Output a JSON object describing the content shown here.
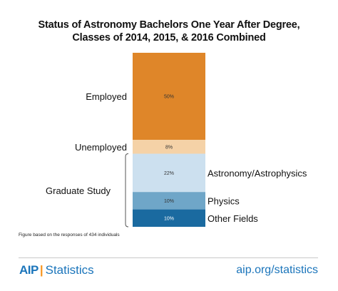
{
  "chart_data": {
    "type": "bar",
    "stacked": true,
    "title": "Status of Astronomy Bachelors One Year After Degree,",
    "subtitle": "Classes of 2014, 2015, & 2016 Combined",
    "categories": [
      "Employed",
      "Unemployed",
      "Astronomy/Astrophysics",
      "Physics",
      "Other Fields"
    ],
    "values": [
      50,
      8,
      22,
      10,
      10
    ],
    "value_labels": [
      "50%",
      "8%",
      "22%",
      "10%",
      "10%"
    ],
    "group_label": "Graduate Study",
    "group_members": [
      "Astronomy/Astrophysics",
      "Physics",
      "Other Fields"
    ],
    "colors": [
      "#df8629",
      "#f5d2a7",
      "#cce0ef",
      "#6fa6c8",
      "#1a6aa0"
    ],
    "ylim": [
      0,
      100
    ],
    "grid": false,
    "legend": "none"
  },
  "footnote": "Figure based on the responses of 434 individuals",
  "footer": {
    "logo_aip": "AIP",
    "logo_separator": "|",
    "logo_statistics": "Statistics",
    "link": "aip.org/statistics"
  },
  "colors": {
    "accent": "#1b75bb",
    "separator": "#f7941d"
  }
}
